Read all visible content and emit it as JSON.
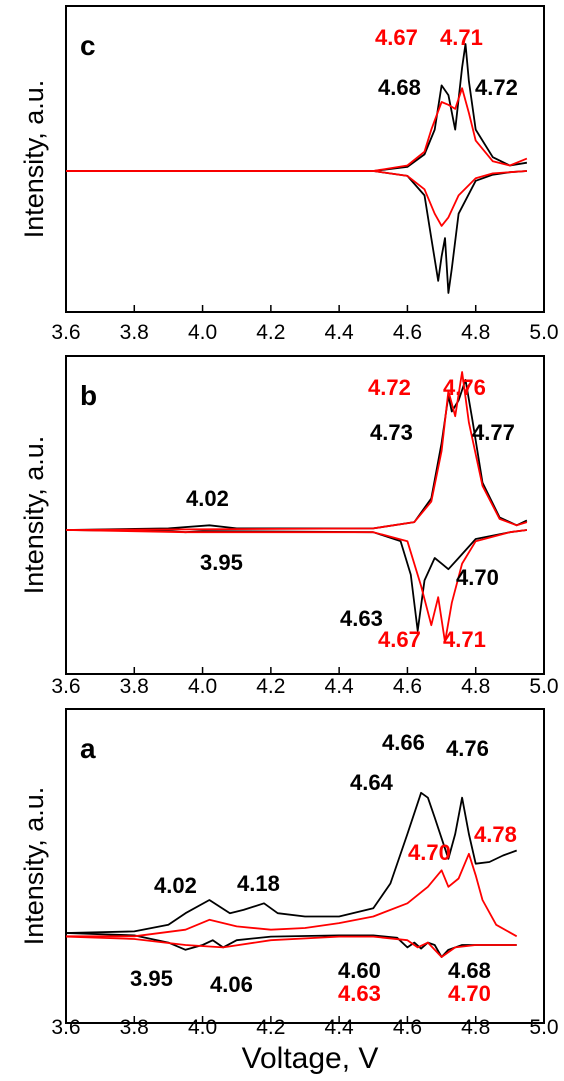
{
  "colors": {
    "black": "#000000",
    "red": "#ff0000"
  },
  "shared_x_ticks": [
    "3.6",
    "3.8",
    "4.0",
    "4.2",
    "4.4",
    "4.6",
    "4.8",
    "5.0"
  ],
  "x_axis_label": "Voltage, V",
  "chart_data": [
    {
      "panel": "c",
      "type": "line",
      "ylabel": "Intensity, a.u.",
      "xlim": [
        3.6,
        5.0
      ],
      "grid": false,
      "x_ticks": [
        "3.6",
        "3.8",
        "4.0",
        "4.2",
        "4.4",
        "4.6",
        "4.8",
        "5.0"
      ],
      "series": [
        {
          "color": "#000000",
          "segment": "upper",
          "x": [
            3.6,
            4.5,
            4.6,
            4.65,
            4.68,
            4.7,
            4.72,
            4.74,
            4.76,
            4.77,
            4.78,
            4.8,
            4.85,
            4.9,
            4.95
          ],
          "y": [
            0,
            0,
            0.03,
            0.12,
            0.3,
            0.62,
            0.55,
            0.3,
            0.75,
            0.92,
            0.65,
            0.3,
            0.1,
            0.04,
            0.06
          ]
        },
        {
          "color": "#000000",
          "segment": "lower",
          "x": [
            3.6,
            4.5,
            4.6,
            4.65,
            4.67,
            4.69,
            4.7,
            4.71,
            4.72,
            4.73,
            4.75,
            4.8,
            4.85,
            4.9,
            4.95
          ],
          "y": [
            0,
            0,
            -0.04,
            -0.2,
            -0.55,
            -0.9,
            -0.7,
            -0.55,
            -1.0,
            -0.8,
            -0.35,
            -0.08,
            -0.03,
            -0.01,
            0
          ]
        },
        {
          "color": "#ff0000",
          "segment": "upper",
          "x": [
            3.6,
            4.5,
            4.6,
            4.65,
            4.67,
            4.7,
            4.72,
            4.74,
            4.76,
            4.78,
            4.8,
            4.85,
            4.9,
            4.95
          ],
          "y": [
            0,
            0,
            0.04,
            0.14,
            0.3,
            0.5,
            0.48,
            0.45,
            0.6,
            0.42,
            0.22,
            0.07,
            0.04,
            0.09
          ]
        },
        {
          "color": "#ff0000",
          "segment": "lower",
          "x": [
            3.6,
            4.5,
            4.6,
            4.65,
            4.68,
            4.7,
            4.72,
            4.75,
            4.8,
            4.85,
            4.9,
            4.95
          ],
          "y": [
            0,
            0,
            -0.04,
            -0.15,
            -0.35,
            -0.45,
            -0.38,
            -0.2,
            -0.06,
            -0.02,
            -0.01,
            0
          ]
        }
      ],
      "annotations": [
        {
          "text": "4.67",
          "color": "#ff0000"
        },
        {
          "text": "4.71",
          "color": "#ff0000"
        },
        {
          "text": "4.68",
          "color": "#000000"
        },
        {
          "text": "4.72",
          "color": "#000000"
        }
      ]
    },
    {
      "panel": "b",
      "type": "line",
      "ylabel": "Intensity, a.u.",
      "xlim": [
        3.6,
        5.0
      ],
      "grid": false,
      "x_ticks": [
        "3.6",
        "3.8",
        "4.0",
        "4.2",
        "4.4",
        "4.6",
        "4.8",
        "5.0"
      ],
      "series": [
        {
          "color": "#000000",
          "segment": "upper",
          "x": [
            3.6,
            3.9,
            4.02,
            4.1,
            4.5,
            4.62,
            4.67,
            4.7,
            4.72,
            4.73,
            4.75,
            4.77,
            4.79,
            4.82,
            4.87,
            4.92,
            4.95
          ],
          "y": [
            0,
            0.01,
            0.03,
            0.01,
            0.01,
            0.05,
            0.2,
            0.55,
            0.85,
            0.75,
            0.82,
            0.95,
            0.7,
            0.3,
            0.08,
            0.03,
            0.06
          ]
        },
        {
          "color": "#000000",
          "segment": "lower",
          "x": [
            3.6,
            3.9,
            3.95,
            4.0,
            4.5,
            4.58,
            4.61,
            4.63,
            4.65,
            4.68,
            4.7,
            4.72,
            4.75,
            4.8,
            4.9,
            4.95
          ],
          "y": [
            0,
            -0.01,
            -0.02,
            -0.01,
            -0.02,
            -0.1,
            -0.4,
            -0.9,
            -0.45,
            -0.25,
            -0.3,
            -0.35,
            -0.25,
            -0.08,
            -0.02,
            0
          ]
        },
        {
          "color": "#ff0000",
          "segment": "upper",
          "x": [
            3.6,
            4.5,
            4.62,
            4.67,
            4.7,
            4.72,
            4.74,
            4.76,
            4.78,
            4.82,
            4.87,
            4.92,
            4.95
          ],
          "y": [
            0,
            0.01,
            0.05,
            0.18,
            0.5,
            0.88,
            0.72,
            1.0,
            0.68,
            0.28,
            0.07,
            0.03,
            0.05
          ]
        },
        {
          "color": "#ff0000",
          "segment": "lower",
          "x": [
            3.6,
            3.95,
            4.5,
            4.6,
            4.64,
            4.67,
            4.69,
            4.71,
            4.73,
            4.76,
            4.8,
            4.9,
            4.95
          ],
          "y": [
            0,
            -0.02,
            -0.02,
            -0.1,
            -0.5,
            -0.85,
            -0.6,
            -1.0,
            -0.65,
            -0.3,
            -0.1,
            -0.02,
            0
          ]
        }
      ],
      "annotations": [
        {
          "text": "4.72",
          "color": "#ff0000"
        },
        {
          "text": "4.76",
          "color": "#ff0000"
        },
        {
          "text": "4.73",
          "color": "#000000"
        },
        {
          "text": "4.77",
          "color": "#000000"
        },
        {
          "text": "4.02",
          "color": "#000000"
        },
        {
          "text": "3.95",
          "color": "#000000"
        },
        {
          "text": "4.70",
          "color": "#000000"
        },
        {
          "text": "4.63",
          "color": "#000000"
        },
        {
          "text": "4.67",
          "color": "#ff0000"
        },
        {
          "text": "4.71",
          "color": "#ff0000"
        }
      ]
    },
    {
      "panel": "a",
      "type": "line",
      "ylabel": "Intensity, a.u.",
      "xlim": [
        3.6,
        5.0
      ],
      "grid": false,
      "x_ticks": [
        "3.6",
        "3.8",
        "4.0",
        "4.2",
        "4.4",
        "4.6",
        "4.8",
        "5.0"
      ],
      "series": [
        {
          "color": "#000000",
          "segment": "upper",
          "x": [
            3.6,
            3.8,
            3.9,
            3.95,
            4.02,
            4.08,
            4.12,
            4.18,
            4.22,
            4.3,
            4.4,
            4.5,
            4.55,
            4.6,
            4.64,
            4.66,
            4.68,
            4.72,
            4.74,
            4.76,
            4.78,
            4.8,
            4.84,
            4.88,
            4.92
          ],
          "y": [
            0,
            0.01,
            0.05,
            0.12,
            0.2,
            0.12,
            0.14,
            0.18,
            0.12,
            0.1,
            0.1,
            0.15,
            0.3,
            0.6,
            0.85,
            0.82,
            0.7,
            0.45,
            0.6,
            0.82,
            0.6,
            0.42,
            0.43,
            0.47,
            0.5
          ]
        },
        {
          "color": "#000000",
          "segment": "lower",
          "x": [
            3.6,
            3.8,
            3.9,
            3.95,
            4.0,
            4.03,
            4.06,
            4.1,
            4.2,
            4.4,
            4.5,
            4.57,
            4.6,
            4.62,
            4.64,
            4.66,
            4.68,
            4.7,
            4.72,
            4.76,
            4.8,
            4.92
          ],
          "y": [
            0,
            -0.02,
            -0.08,
            -0.14,
            -0.1,
            -0.06,
            -0.12,
            -0.06,
            -0.03,
            -0.02,
            -0.02,
            -0.04,
            -0.12,
            -0.08,
            -0.13,
            -0.08,
            -0.1,
            -0.2,
            -0.14,
            -0.1,
            -0.1,
            -0.1
          ]
        },
        {
          "color": "#ff0000",
          "segment": "upper",
          "x": [
            3.6,
            3.8,
            3.95,
            4.02,
            4.1,
            4.2,
            4.3,
            4.4,
            4.5,
            4.6,
            4.66,
            4.7,
            4.72,
            4.75,
            4.78,
            4.8,
            4.82,
            4.86,
            4.92
          ],
          "y": [
            -0.02,
            -0.02,
            0.02,
            0.08,
            0.04,
            0.02,
            0.03,
            0.06,
            0.1,
            0.18,
            0.28,
            0.38,
            0.28,
            0.33,
            0.48,
            0.35,
            0.2,
            0.05,
            -0.02
          ]
        },
        {
          "color": "#ff0000",
          "segment": "lower",
          "x": [
            3.6,
            3.8,
            3.95,
            4.06,
            4.2,
            4.4,
            4.5,
            4.6,
            4.63,
            4.66,
            4.7,
            4.74,
            4.8,
            4.92
          ],
          "y": [
            -0.03,
            -0.05,
            -0.1,
            -0.12,
            -0.06,
            -0.03,
            -0.03,
            -0.06,
            -0.12,
            -0.08,
            -0.2,
            -0.12,
            -0.1,
            -0.1
          ]
        }
      ],
      "annotations": [
        {
          "text": "4.66",
          "color": "#000000"
        },
        {
          "text": "4.76",
          "color": "#000000"
        },
        {
          "text": "4.64",
          "color": "#000000"
        },
        {
          "text": "4.78",
          "color": "#ff0000"
        },
        {
          "text": "4.70",
          "color": "#ff0000"
        },
        {
          "text": "4.02",
          "color": "#000000"
        },
        {
          "text": "4.18",
          "color": "#000000"
        },
        {
          "text": "3.95",
          "color": "#000000"
        },
        {
          "text": "4.06",
          "color": "#000000"
        },
        {
          "text": "4.60",
          "color": "#000000"
        },
        {
          "text": "4.68",
          "color": "#000000"
        },
        {
          "text": "4.63",
          "color": "#ff0000"
        },
        {
          "text": "4.70",
          "color": "#ff0000"
        }
      ]
    }
  ]
}
